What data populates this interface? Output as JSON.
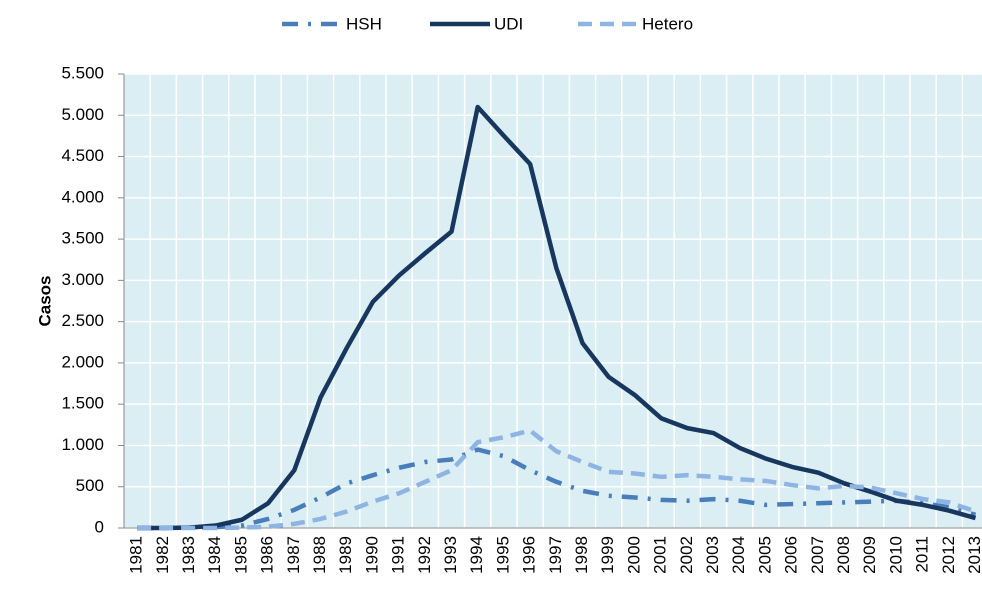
{
  "chart_data": {
    "type": "line",
    "y_label": "Casos",
    "categories": [
      "1981",
      "1982",
      "1983",
      "1984",
      "1985",
      "1986",
      "1987",
      "1988",
      "1989",
      "1990",
      "1991",
      "1992",
      "1993",
      "1994",
      "1995",
      "1996",
      "1997",
      "1998",
      "1999",
      "2000",
      "2001",
      "2002",
      "2003",
      "2004",
      "2005",
      "2006",
      "2007",
      "2008",
      "2009",
      "2010",
      "2011",
      "2012",
      "2013"
    ],
    "series": [
      {
        "name": "HSH",
        "color": "#4a7ebb",
        "line_style": "dashdot",
        "values": [
          0,
          0,
          5,
          10,
          30,
          110,
          220,
          370,
          540,
          640,
          730,
          800,
          830,
          950,
          870,
          700,
          560,
          450,
          390,
          370,
          340,
          330,
          350,
          330,
          280,
          290,
          300,
          310,
          320,
          330,
          300,
          250,
          160
        ]
      },
      {
        "name": "UDI",
        "color": "#17375e",
        "line_style": "solid",
        "values": [
          0,
          0,
          5,
          30,
          100,
          300,
          700,
          1580,
          2180,
          2740,
          3060,
          3330,
          3590,
          5100,
          4750,
          4410,
          3150,
          2240,
          1830,
          1610,
          1330,
          1210,
          1150,
          970,
          840,
          740,
          670,
          540,
          440,
          330,
          280,
          210,
          120
        ]
      },
      {
        "name": "Hetero",
        "color": "#8eb4e3",
        "line_style": "dashed",
        "values": [
          0,
          0,
          0,
          0,
          5,
          15,
          50,
          110,
          200,
          320,
          420,
          560,
          700,
          1040,
          1100,
          1180,
          930,
          800,
          680,
          660,
          620,
          640,
          620,
          590,
          570,
          520,
          480,
          510,
          490,
          420,
          350,
          310,
          200
        ]
      }
    ],
    "ylim": [
      0,
      5500
    ],
    "yticks": [
      0,
      {
        "value": 500,
        "label": "500"
      },
      {
        "value": 1000,
        "label": "1.000"
      },
      {
        "value": 1500,
        "label": "1.500"
      },
      {
        "value": 2000,
        "label": "2.000"
      },
      {
        "value": 2500,
        "label": "2.500"
      },
      {
        "value": 3000,
        "label": "3.000"
      },
      {
        "value": 3500,
        "label": "3.500"
      },
      {
        "value": 4000,
        "label": "4.000"
      },
      {
        "value": 4500,
        "label": "4.500"
      },
      {
        "value": 5000,
        "label": "5.000"
      },
      {
        "value": 5500,
        "label": "5.500"
      }
    ],
    "grid": true,
    "legend": "top",
    "plot_background": "#daeef3"
  }
}
